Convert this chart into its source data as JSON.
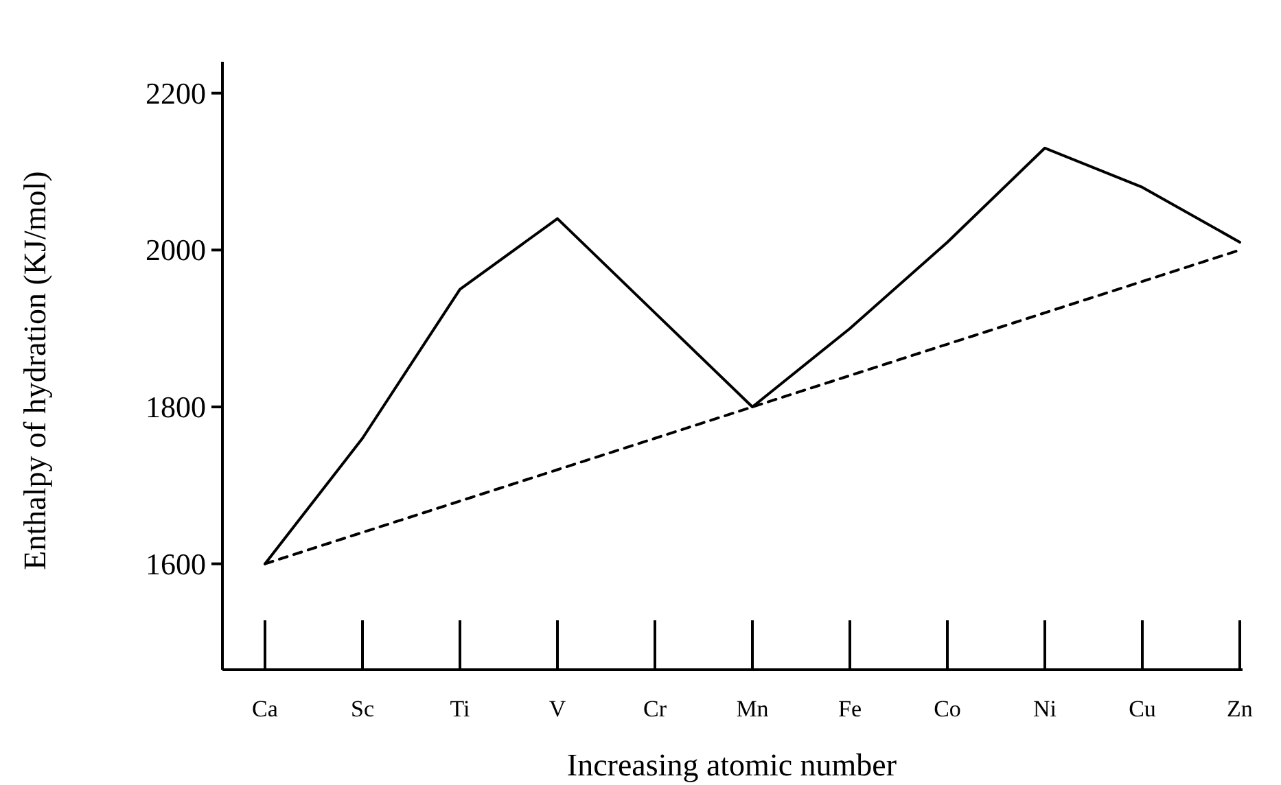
{
  "chart_data": {
    "type": "line",
    "xlabel": "Increasing atomic number",
    "ylabel": "Enthalpy of hydration (KJ/mol)",
    "categories": [
      "Ca",
      "Sc",
      "Ti",
      "V",
      "Cr",
      "Mn",
      "Fe",
      "Co",
      "Ni",
      "Cu",
      "Zn"
    ],
    "series": [
      {
        "color": "#000000",
        "line_style": "solid",
        "values": [
          1600,
          1760,
          1950,
          2040,
          1920,
          1800,
          1900,
          2010,
          2130,
          2080,
          2010
        ]
      },
      {
        "color": "#000000",
        "line_style": "dashed",
        "values": [
          1600,
          1640,
          1680,
          1720,
          1760,
          1800,
          1840,
          1880,
          1920,
          1960,
          2000
        ]
      }
    ],
    "ylim": [
      1465,
      2240
    ],
    "yticks": [
      1600,
      1800,
      2000,
      2200
    ],
    "grid": false,
    "marker": "none"
  }
}
